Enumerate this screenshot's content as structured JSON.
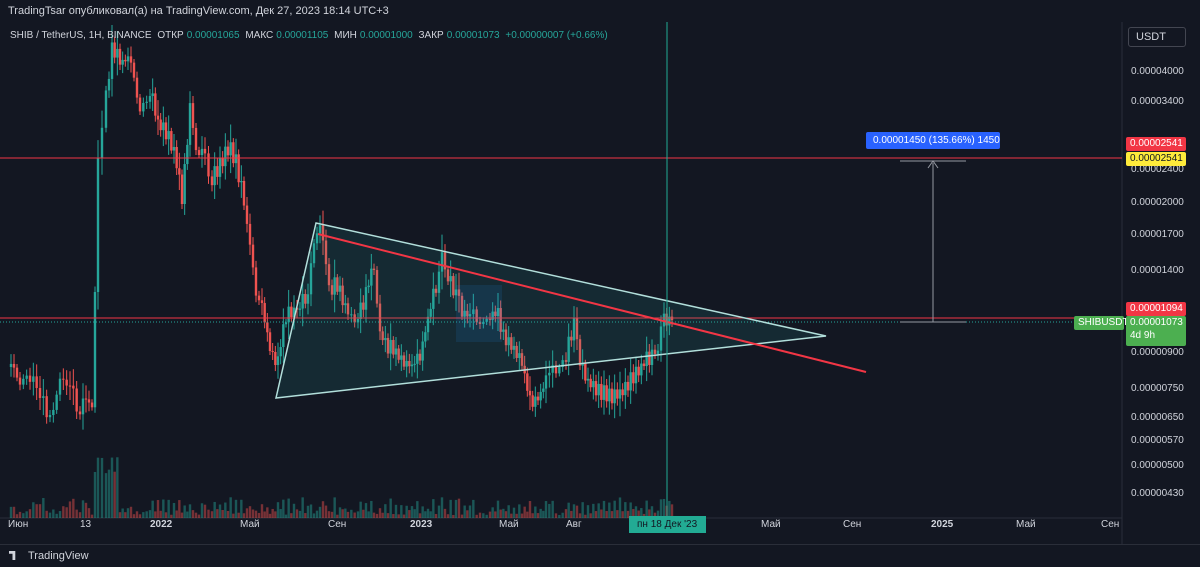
{
  "header": {
    "publisher_line": "TradingTsar опубликовал(а) на TradingView.com, Дек 27, 2023 18:14 UTC+3"
  },
  "legend": {
    "symbol": "SHIB / TetherUS, 1H, BINANCE",
    "open_label": "ОТКР",
    "open": "0.00001065",
    "high_label": "МАКС",
    "high": "0.00001105",
    "low_label": "МИН",
    "low": "0.00001000",
    "close_label": "ЗАКР",
    "close": "0.00001073",
    "change": "+0.00000007 (+0.66%)"
  },
  "currency_button": "USDT",
  "price_axis": {
    "scale": "log",
    "ticks": [
      "0.00004000",
      "0.00003400",
      "0.00002400",
      "0.00002000",
      "0.00001700",
      "0.00001400",
      "0.00000900",
      "0.00000750",
      "0.00000650",
      "0.00000570",
      "0.00000500",
      "0.00000430"
    ]
  },
  "time_axis": {
    "ticks": [
      "Июн",
      "13",
      "2022",
      "Май",
      "Сен",
      "2023",
      "Май",
      "Авг",
      "Май",
      "Сен",
      "2025",
      "Май",
      "Сен"
    ],
    "crosshair_label": "пн 18 Дек '23"
  },
  "price_tags": {
    "target_red": "0.00002541",
    "target_yellow": "0.00002541",
    "resistance": "0.00001094",
    "symbol_tag": "SHIBUSDT",
    "last_price": "0.00001073",
    "countdown": "4d 9h"
  },
  "measure_label": "0.00001450 (135.66%) 1450",
  "footer": {
    "brand": "TradingView"
  },
  "colors": {
    "background": "#131722",
    "up": "#26a69a",
    "down": "#ef5350",
    "trendline": "#f23645",
    "triangle": "#b2dfdb",
    "crosshair": "#22ab94",
    "measure_bg": "#2962ff",
    "tag_red": "#f23645",
    "tag_yellow": "#ffeb3b",
    "tag_green": "#4caf50"
  },
  "chart_data": {
    "type": "candlestick",
    "title": "",
    "interval": "1H",
    "exchange": "BINANCE",
    "y_scale": "log",
    "ylim": [
      4e-06,
      5e-06
    ],
    "grid": false,
    "horizontal_levels": [
      2.541e-05,
      1.094e-05
    ],
    "x": [
      "2021-06",
      "2021-07",
      "2021-08",
      "2021-09",
      "2021-10",
      "2021-11",
      "2021-12",
      "2022-01",
      "2022-02",
      "2022-03",
      "2022-04",
      "2022-05",
      "2022-06",
      "2022-07",
      "2022-08",
      "2022-09",
      "2022-10",
      "2022-11",
      "2022-12",
      "2023-01",
      "2023-02",
      "2023-03",
      "2023-04",
      "2023-05",
      "2023-06",
      "2023-07",
      "2023-08",
      "2023-09",
      "2023-10",
      "2023-11",
      "2023-12"
    ],
    "close": [
      7.2e-06,
      7e-06,
      7.8e-06,
      7.3e-06,
      4.5e-05,
      3.8e-05,
      3.3e-05,
      2.5e-05,
      2.7e-05,
      2.4e-05,
      2.1e-05,
      1.2e-05,
      9e-06,
      1.1e-05,
      1.35e-05,
      1.12e-05,
      1.05e-05,
      9e-06,
      8.5e-06,
      1.12e-05,
      1.25e-05,
      1.05e-05,
      1.1e-05,
      9.2e-06,
      6.8e-06,
      8e-06,
      8.5e-06,
      7.4e-06,
      7.3e-06,
      9e-06,
      1.07e-05
    ]
  }
}
